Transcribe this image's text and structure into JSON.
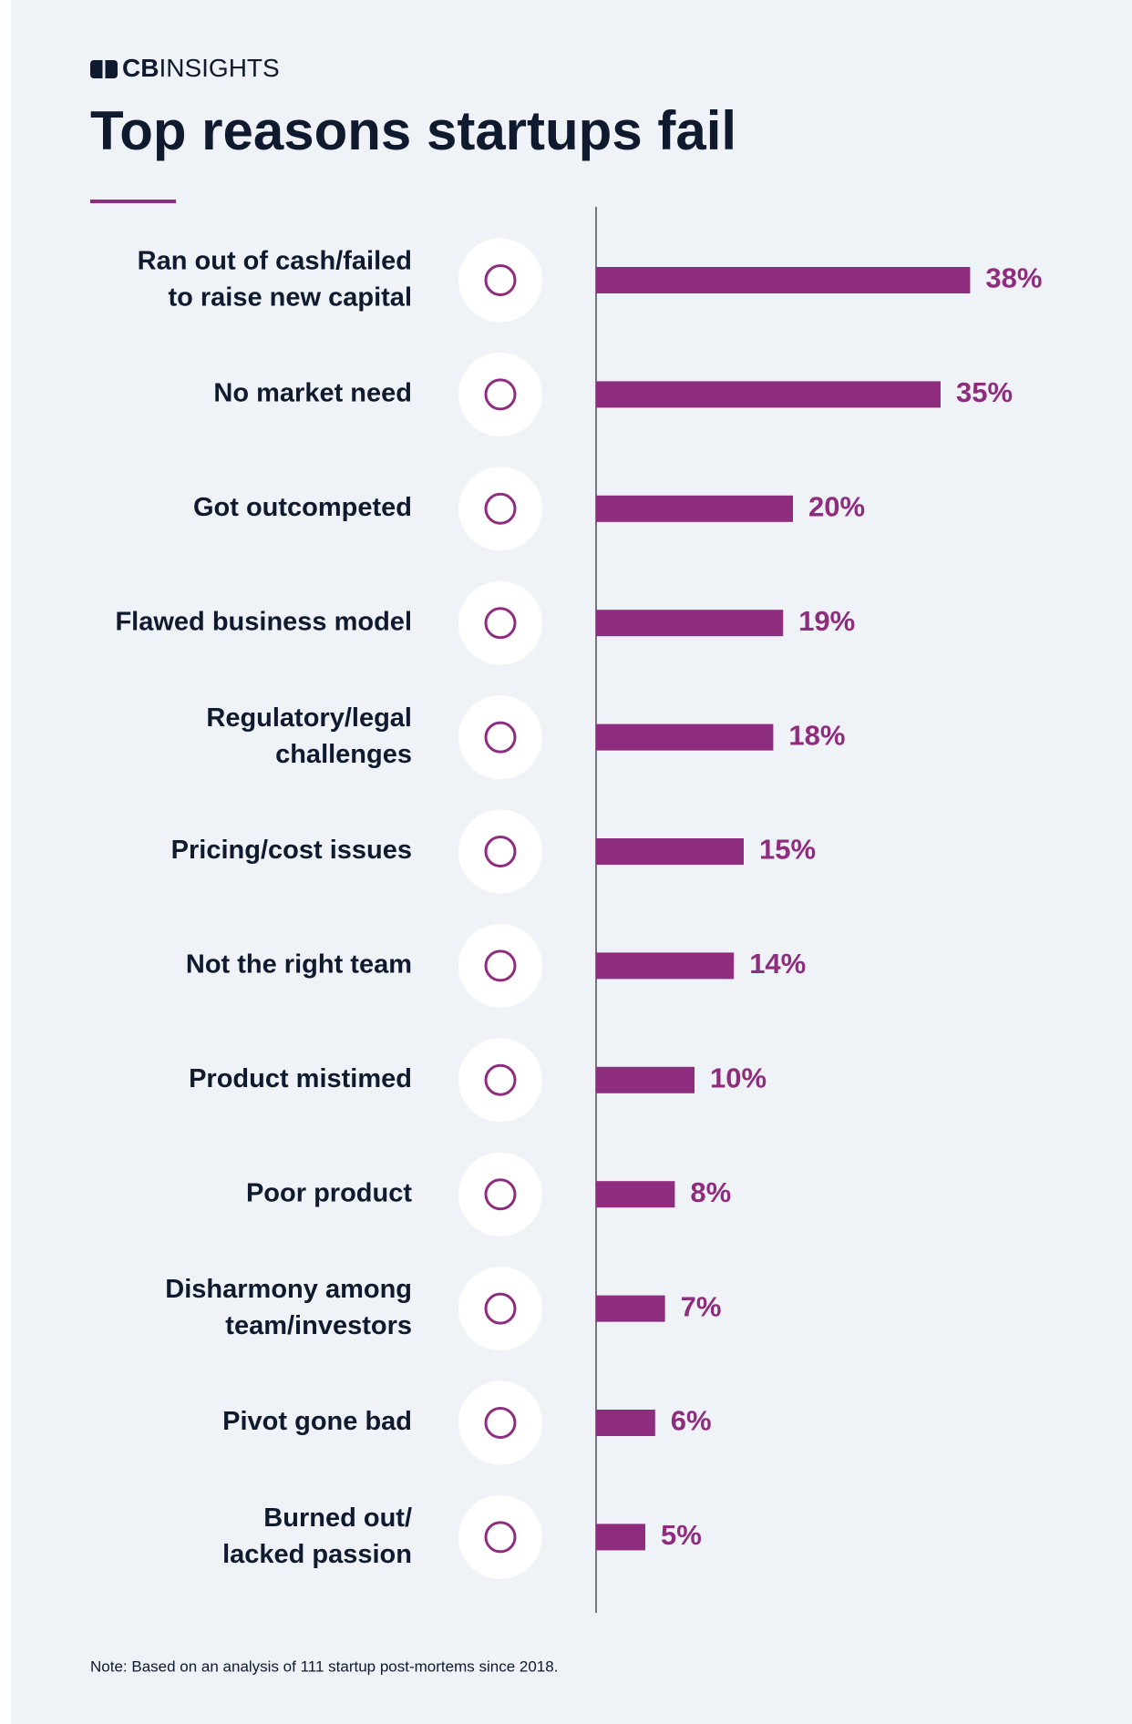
{
  "chart_data": {
    "type": "barh",
    "brand": {
      "bold": "CB",
      "rest": "INSIGHTS"
    },
    "title": "Top reasons startups fail",
    "categories": [
      "Ran out of cash/failed\nto raise new capital",
      "No market need",
      "Got outcompeted",
      "Flawed business model",
      "Regulatory/legal\nchallenges",
      "Pricing/cost issues",
      "Not the right team",
      "Product mistimed",
      "Poor product",
      "Disharmony among\nteam/investors",
      "Pivot gone bad",
      "Burned out/\nlacked passion"
    ],
    "values": [
      38,
      35,
      20,
      19,
      18,
      15,
      14,
      10,
      8,
      7,
      6,
      5
    ],
    "value_labels": [
      "38%",
      "35%",
      "20%",
      "19%",
      "18%",
      "15%",
      "14%",
      "10%",
      "8%",
      "7%",
      "6%",
      "5%"
    ],
    "color": "#8e2c7d",
    "xlim": [
      0,
      40
    ],
    "note": "Note: Based on an analysis of 111 startup post-mortems since 2018."
  }
}
